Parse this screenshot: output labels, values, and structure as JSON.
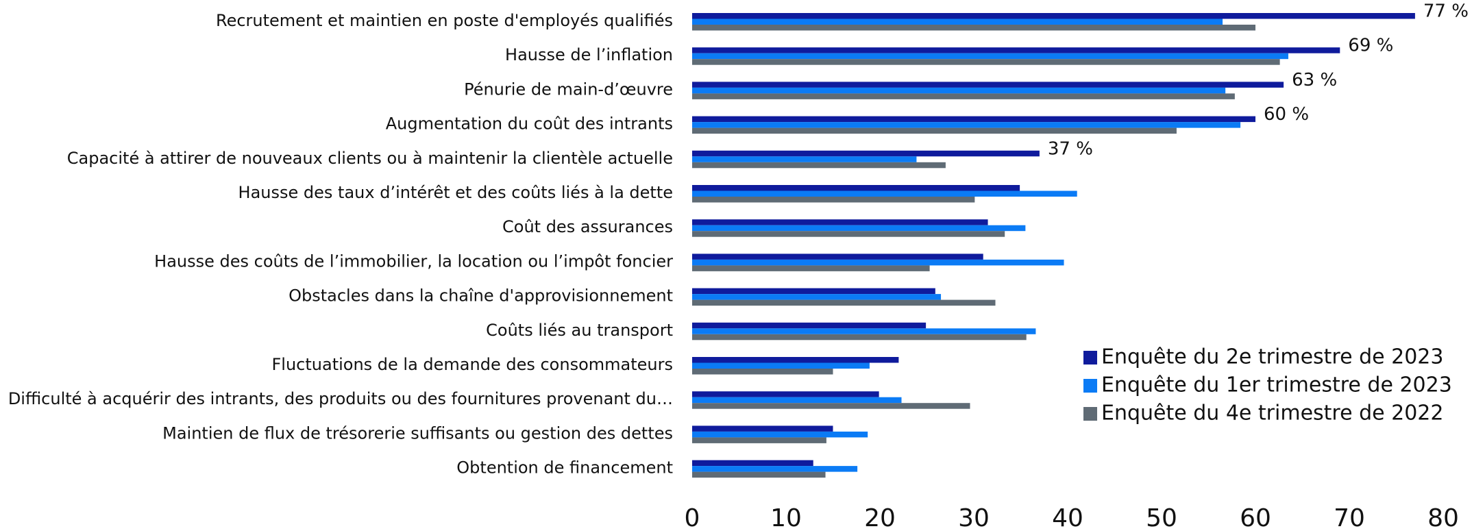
{
  "chart_data": {
    "type": "hbar",
    "categories": [
      "Recrutement et maintien en poste d'employés qualifiés",
      "Hausse de l’inflation",
      "Pénurie de main-d’œuvre",
      "Augmentation du coût des intrants",
      "Capacité à attirer de nouveaux clients ou à maintenir la clientèle actuelle",
      "Hausse des taux d’intérêt et des coûts liés à la dette",
      "Coût des assurances",
      "Hausse des coûts de l’immobilier, la location ou l’impôt foncier",
      "Obstacles dans la chaîne d'approvisionnement",
      "Coûts liés au transport",
      "Fluctuations de la demande des consommateurs",
      "Difficulté à acquérir des intrants, des produits ou des fournitures provenant du…",
      "Maintien de flux de trésorerie suffisants ou gestion des dettes",
      "Obtention de financement"
    ],
    "series": [
      {
        "name": "Enquête du 2e trimestre de 2023",
        "color": "#0f1b9c",
        "values": [
          77,
          69,
          63,
          60,
          37,
          34.9,
          31.5,
          31,
          25.9,
          24.9,
          22,
          19.9,
          15,
          12.9
        ],
        "value_labels": [
          "77 %",
          "69 %",
          "63 %",
          "60 %",
          "37 %",
          null,
          null,
          null,
          null,
          null,
          null,
          null,
          null,
          null
        ]
      },
      {
        "name": "Enquête du 1er trimestre de 2023",
        "color": "#0b7bf5",
        "values": [
          56.5,
          63.5,
          56.8,
          58.4,
          23.9,
          41,
          35.5,
          39.6,
          26.5,
          36.6,
          18.9,
          22.3,
          18.7,
          17.6
        ]
      },
      {
        "name": "Enquête du 4e trimestre de 2022",
        "color": "#5f6b75",
        "values": [
          60,
          62.6,
          57.8,
          51.6,
          27,
          30.1,
          33.3,
          25.3,
          32.3,
          35.6,
          15,
          29.6,
          14.3,
          14.2
        ]
      }
    ],
    "xlim": [
      0,
      80
    ],
    "xticks": [
      0,
      10,
      20,
      30,
      40,
      50,
      60,
      70,
      80
    ],
    "legend": "right"
  }
}
